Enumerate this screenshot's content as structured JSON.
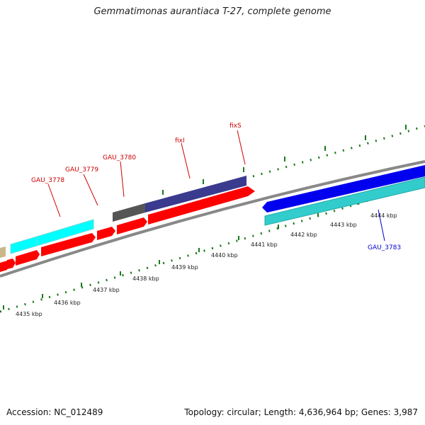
{
  "title": "Gemmatimonas aurantiaca T-27, complete genome",
  "footer": {
    "accession": "Accession: NC_012489",
    "topology": "Topology: circular; Length: 4,636,964 bp; Genes: 3,987"
  },
  "scale": {
    "ticks": [
      "4435 kbp",
      "4436 kbp",
      "4437 kbp",
      "4438 kbp",
      "4439 kbp",
      "4440 kbp",
      "4441 kbp",
      "4442 kbp",
      "4443 kbp",
      "4444 kbp"
    ]
  },
  "gene_labels": {
    "gau_3778": "GAU_3778",
    "gau_3779": "GAU_3779",
    "gau_3780": "GAU_3780",
    "fixi": "fixI",
    "fixs": "fixS",
    "gau_3783": "GAU_3783"
  },
  "colors": {
    "forward_cds": "#ff0000",
    "reverse_cds": "#0000ee",
    "cyan_block": "#00ffff",
    "teal_block": "#33cccc",
    "navy_block": "#3a3a8f",
    "gray_block": "#555555",
    "tan_block": "#c8b88a",
    "backbone": "#888888",
    "ticks": "#1a7a1a",
    "forward_label": "#cc0000",
    "reverse_label": "#0000cc"
  }
}
